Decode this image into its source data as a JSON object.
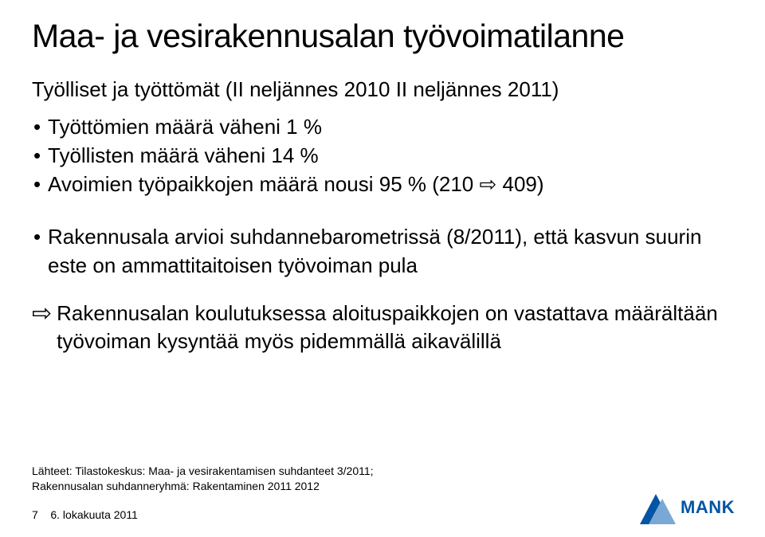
{
  "title": "Maa- ja vesirakennusalan työvoimatilanne",
  "subtitle": "Työlliset ja työttömät (II neljännes 2010 II neljännes 2011)",
  "bullets_top": [
    "Työttömien määrä väheni 1 %",
    "Työllisten määrä väheni 14 %",
    "Avoimien työpaikkojen määrä nousi 95 % (210 ⇨ 409)"
  ],
  "bullet_big": "Rakennusala arvioi suhdannebarometrissä (8/2011), että kasvun suurin este on ammattitaitoisen työvoiman pula",
  "arrow_point": "Rakennusalan koulutuksessa aloituspaikkojen on vastattava määrältään työvoiman kysyntää myös pidemmällä aikavälillä",
  "sources_line1": "Lähteet: Tilastokeskus: Maa- ja vesirakentamisen suhdanteet 3/2011;",
  "sources_line2": "Rakennusalan suhdanneryhmä: Rakentaminen 2011 2012",
  "footer_page": "7",
  "footer_date": "6. lokakuuta 2011",
  "logo_text": "MANK",
  "colors": {
    "text": "#000000",
    "logo_primary": "#0055a4",
    "logo_light": "#7aa8d4",
    "background": "#ffffff"
  },
  "arrow_glyph": "⇨",
  "inline_arrow_glyph": "⇨"
}
